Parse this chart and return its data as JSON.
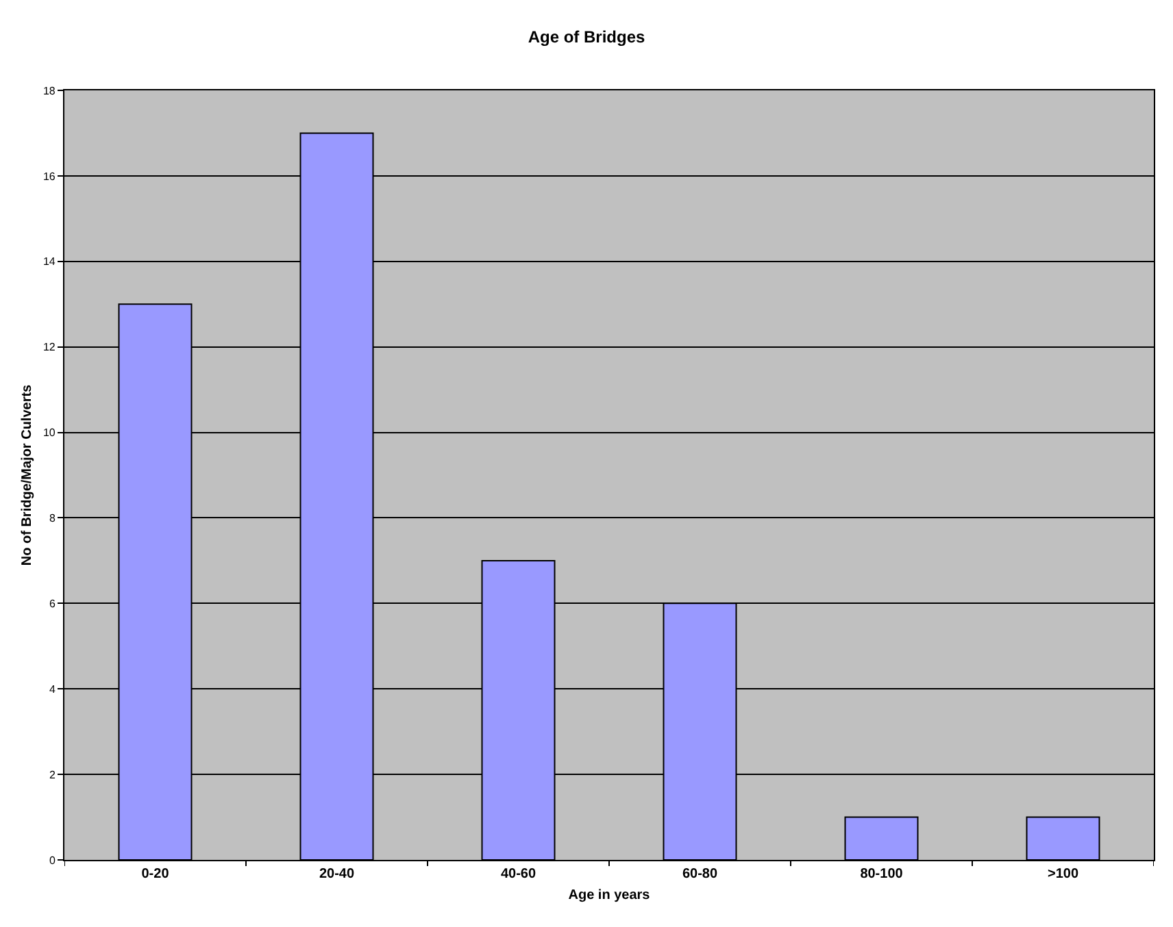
{
  "chart_data": {
    "type": "bar",
    "title": "Age of Bridges",
    "xlabel": "Age in years",
    "ylabel": "No of Bridge/Major Culverts",
    "categories": [
      "0-20",
      "20-40",
      "40-60",
      "60-80",
      "80-100",
      ">100"
    ],
    "values": [
      13,
      17,
      7,
      6,
      1,
      1
    ],
    "color": "#9999ff",
    "ylim": [
      0,
      18
    ],
    "yticks": [
      0,
      2,
      4,
      6,
      8,
      10,
      12,
      14,
      16,
      18
    ],
    "grid": "y"
  }
}
